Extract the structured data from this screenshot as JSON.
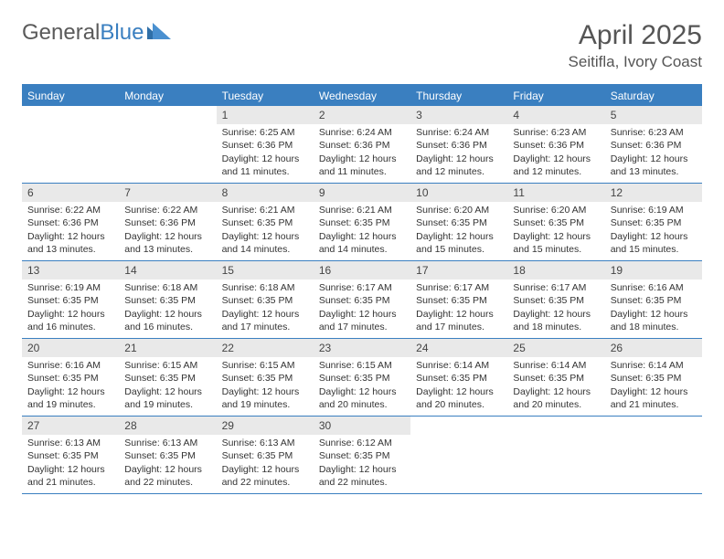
{
  "logo": {
    "text1": "General",
    "text2": "Blue"
  },
  "title": "April 2025",
  "location": "Seitifla, Ivory Coast",
  "colors": {
    "accent": "#3a7fc0",
    "dow_bg": "#3a7fc0",
    "dow_fg": "#ffffff",
    "daynum_bg": "#e9e9e9",
    "text": "#333333",
    "muted": "#555555",
    "bg": "#ffffff"
  },
  "fonts": {
    "title_size": 30,
    "location_size": 17,
    "dow_size": 12,
    "body_size": 10.5
  },
  "daysOfWeek": [
    "Sunday",
    "Monday",
    "Tuesday",
    "Wednesday",
    "Thursday",
    "Friday",
    "Saturday"
  ],
  "leadingBlanks": 2,
  "days": [
    {
      "n": 1,
      "sunrise": "Sunrise: 6:25 AM",
      "sunset": "Sunset: 6:36 PM",
      "daylight": "Daylight: 12 hours and 11 minutes."
    },
    {
      "n": 2,
      "sunrise": "Sunrise: 6:24 AM",
      "sunset": "Sunset: 6:36 PM",
      "daylight": "Daylight: 12 hours and 11 minutes."
    },
    {
      "n": 3,
      "sunrise": "Sunrise: 6:24 AM",
      "sunset": "Sunset: 6:36 PM",
      "daylight": "Daylight: 12 hours and 12 minutes."
    },
    {
      "n": 4,
      "sunrise": "Sunrise: 6:23 AM",
      "sunset": "Sunset: 6:36 PM",
      "daylight": "Daylight: 12 hours and 12 minutes."
    },
    {
      "n": 5,
      "sunrise": "Sunrise: 6:23 AM",
      "sunset": "Sunset: 6:36 PM",
      "daylight": "Daylight: 12 hours and 13 minutes."
    },
    {
      "n": 6,
      "sunrise": "Sunrise: 6:22 AM",
      "sunset": "Sunset: 6:36 PM",
      "daylight": "Daylight: 12 hours and 13 minutes."
    },
    {
      "n": 7,
      "sunrise": "Sunrise: 6:22 AM",
      "sunset": "Sunset: 6:36 PM",
      "daylight": "Daylight: 12 hours and 13 minutes."
    },
    {
      "n": 8,
      "sunrise": "Sunrise: 6:21 AM",
      "sunset": "Sunset: 6:35 PM",
      "daylight": "Daylight: 12 hours and 14 minutes."
    },
    {
      "n": 9,
      "sunrise": "Sunrise: 6:21 AM",
      "sunset": "Sunset: 6:35 PM",
      "daylight": "Daylight: 12 hours and 14 minutes."
    },
    {
      "n": 10,
      "sunrise": "Sunrise: 6:20 AM",
      "sunset": "Sunset: 6:35 PM",
      "daylight": "Daylight: 12 hours and 15 minutes."
    },
    {
      "n": 11,
      "sunrise": "Sunrise: 6:20 AM",
      "sunset": "Sunset: 6:35 PM",
      "daylight": "Daylight: 12 hours and 15 minutes."
    },
    {
      "n": 12,
      "sunrise": "Sunrise: 6:19 AM",
      "sunset": "Sunset: 6:35 PM",
      "daylight": "Daylight: 12 hours and 15 minutes."
    },
    {
      "n": 13,
      "sunrise": "Sunrise: 6:19 AM",
      "sunset": "Sunset: 6:35 PM",
      "daylight": "Daylight: 12 hours and 16 minutes."
    },
    {
      "n": 14,
      "sunrise": "Sunrise: 6:18 AM",
      "sunset": "Sunset: 6:35 PM",
      "daylight": "Daylight: 12 hours and 16 minutes."
    },
    {
      "n": 15,
      "sunrise": "Sunrise: 6:18 AM",
      "sunset": "Sunset: 6:35 PM",
      "daylight": "Daylight: 12 hours and 17 minutes."
    },
    {
      "n": 16,
      "sunrise": "Sunrise: 6:17 AM",
      "sunset": "Sunset: 6:35 PM",
      "daylight": "Daylight: 12 hours and 17 minutes."
    },
    {
      "n": 17,
      "sunrise": "Sunrise: 6:17 AM",
      "sunset": "Sunset: 6:35 PM",
      "daylight": "Daylight: 12 hours and 17 minutes."
    },
    {
      "n": 18,
      "sunrise": "Sunrise: 6:17 AM",
      "sunset": "Sunset: 6:35 PM",
      "daylight": "Daylight: 12 hours and 18 minutes."
    },
    {
      "n": 19,
      "sunrise": "Sunrise: 6:16 AM",
      "sunset": "Sunset: 6:35 PM",
      "daylight": "Daylight: 12 hours and 18 minutes."
    },
    {
      "n": 20,
      "sunrise": "Sunrise: 6:16 AM",
      "sunset": "Sunset: 6:35 PM",
      "daylight": "Daylight: 12 hours and 19 minutes."
    },
    {
      "n": 21,
      "sunrise": "Sunrise: 6:15 AM",
      "sunset": "Sunset: 6:35 PM",
      "daylight": "Daylight: 12 hours and 19 minutes."
    },
    {
      "n": 22,
      "sunrise": "Sunrise: 6:15 AM",
      "sunset": "Sunset: 6:35 PM",
      "daylight": "Daylight: 12 hours and 19 minutes."
    },
    {
      "n": 23,
      "sunrise": "Sunrise: 6:15 AM",
      "sunset": "Sunset: 6:35 PM",
      "daylight": "Daylight: 12 hours and 20 minutes."
    },
    {
      "n": 24,
      "sunrise": "Sunrise: 6:14 AM",
      "sunset": "Sunset: 6:35 PM",
      "daylight": "Daylight: 12 hours and 20 minutes."
    },
    {
      "n": 25,
      "sunrise": "Sunrise: 6:14 AM",
      "sunset": "Sunset: 6:35 PM",
      "daylight": "Daylight: 12 hours and 20 minutes."
    },
    {
      "n": 26,
      "sunrise": "Sunrise: 6:14 AM",
      "sunset": "Sunset: 6:35 PM",
      "daylight": "Daylight: 12 hours and 21 minutes."
    },
    {
      "n": 27,
      "sunrise": "Sunrise: 6:13 AM",
      "sunset": "Sunset: 6:35 PM",
      "daylight": "Daylight: 12 hours and 21 minutes."
    },
    {
      "n": 28,
      "sunrise": "Sunrise: 6:13 AM",
      "sunset": "Sunset: 6:35 PM",
      "daylight": "Daylight: 12 hours and 22 minutes."
    },
    {
      "n": 29,
      "sunrise": "Sunrise: 6:13 AM",
      "sunset": "Sunset: 6:35 PM",
      "daylight": "Daylight: 12 hours and 22 minutes."
    },
    {
      "n": 30,
      "sunrise": "Sunrise: 6:12 AM",
      "sunset": "Sunset: 6:35 PM",
      "daylight": "Daylight: 12 hours and 22 minutes."
    }
  ]
}
